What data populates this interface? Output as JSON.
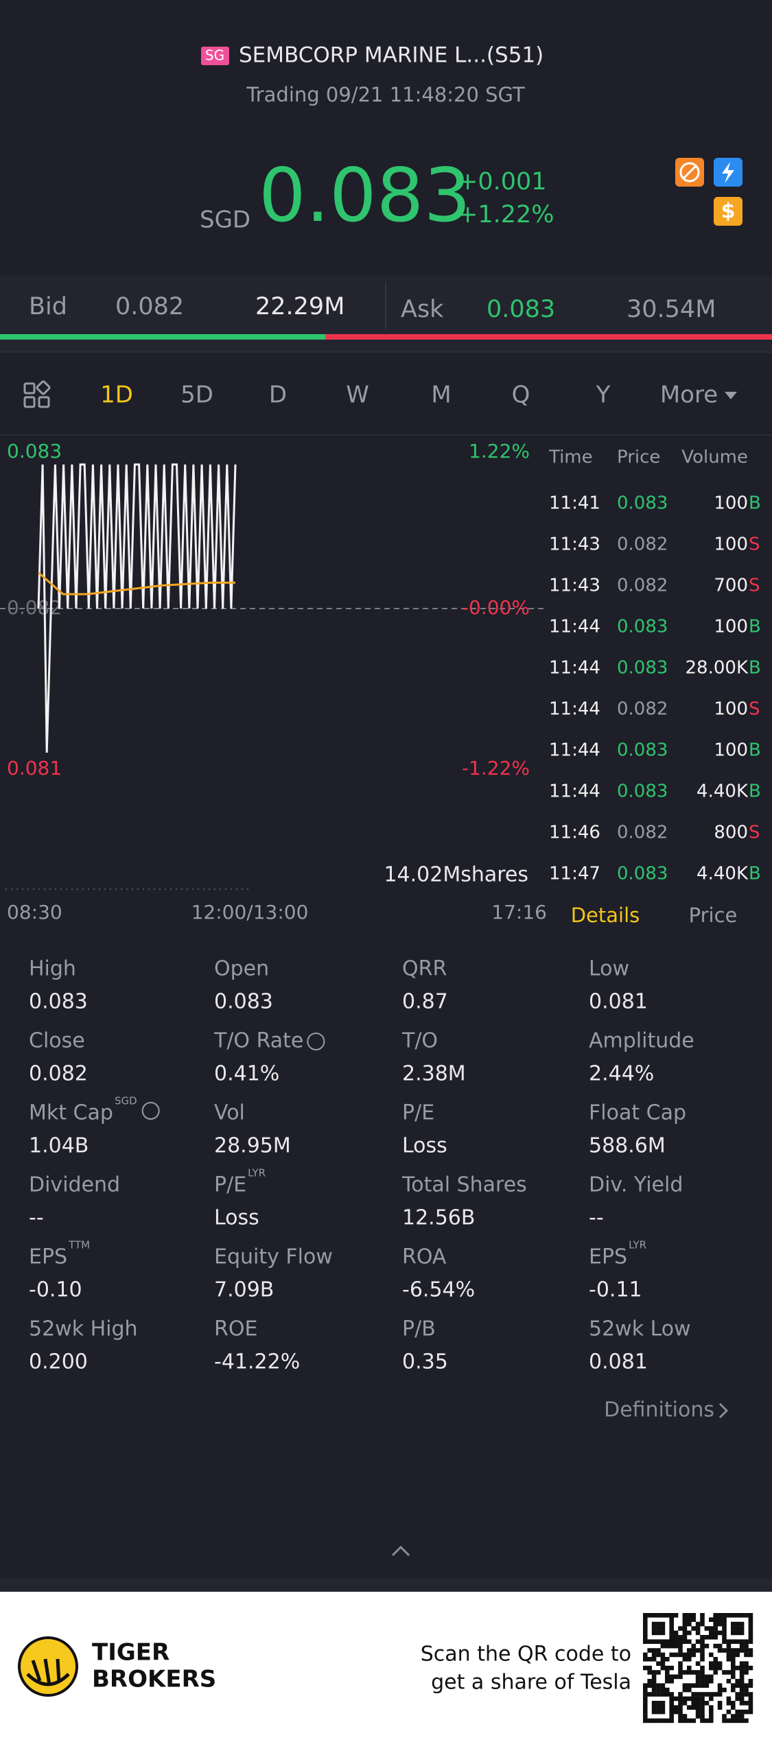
{
  "header": {
    "exchange_badge": "SG",
    "name": "SEMBCORP MARINE L...(S51)",
    "status": "Trading 09/21 11:48:20 SGT"
  },
  "quote": {
    "currency": "SGD",
    "price": "0.083",
    "change": "+0.001",
    "change_pct": "+1.22%"
  },
  "order_book": {
    "bid_label": "Bid",
    "bid_price": "0.082",
    "bid_size": "22.29M",
    "ask_label": "Ask",
    "ask_price": "0.083",
    "ask_size": "30.54M"
  },
  "tabs": [
    "1D",
    "5D",
    "D",
    "W",
    "M",
    "Q",
    "Y",
    "More"
  ],
  "active_tab": 0,
  "chart": {
    "y_top_label": "0.083",
    "base_label": "0.082",
    "y_bottom_label": "0.081",
    "pct_top": "1.22%",
    "pct_base": "-0.00%",
    "pct_bottom": "-1.22%",
    "volume_label": "14.02Mshares",
    "x_labels": [
      "08:30",
      "12:00/13:00",
      "17:16"
    ],
    "price": [
      0.082,
      0.083,
      0.081,
      0.082,
      0.083,
      0.082,
      0.083,
      0.082,
      0.083,
      0.082,
      0.083,
      0.083,
      0.082,
      0.083,
      0.082,
      0.083,
      0.082,
      0.083,
      0.082,
      0.083,
      0.082,
      0.083,
      0.082,
      0.083,
      0.083,
      0.082,
      0.083,
      0.082,
      0.083,
      0.082,
      0.083,
      0.082,
      0.083,
      0.083,
      0.082,
      0.083,
      0.082,
      0.083,
      0.082,
      0.083,
      0.082,
      0.083,
      0.082,
      0.083,
      0.082,
      0.083,
      0.082,
      0.083
    ],
    "avg": [
      0.08225,
      0.0821,
      0.0821,
      0.08212,
      0.08214,
      0.08216,
      0.08217,
      0.08218,
      0.08218
    ]
  },
  "trades": {
    "headers": [
      "Time",
      "Price",
      "Volume"
    ],
    "rows": [
      [
        "11:41",
        "0.083",
        "100",
        "B"
      ],
      [
        "11:43",
        "0.082",
        "100",
        "S"
      ],
      [
        "11:43",
        "0.082",
        "700",
        "S"
      ],
      [
        "11:44",
        "0.083",
        "100",
        "B"
      ],
      [
        "11:44",
        "0.083",
        "28.00K",
        "B"
      ],
      [
        "11:44",
        "0.082",
        "100",
        "S"
      ],
      [
        "11:44",
        "0.083",
        "100",
        "B"
      ],
      [
        "11:44",
        "0.083",
        "4.40K",
        "B"
      ],
      [
        "11:46",
        "0.082",
        "800",
        "S"
      ],
      [
        "11:47",
        "0.083",
        "4.40K",
        "B"
      ]
    ]
  },
  "detail_tabs": [
    "Details",
    "Price"
  ],
  "stats": [
    {
      "label": "High",
      "value": "0.083"
    },
    {
      "label": "Open",
      "value": "0.083"
    },
    {
      "label": "QRR",
      "value": "0.87"
    },
    {
      "label": "Low",
      "value": "0.081"
    },
    {
      "label": "Close",
      "value": "0.082"
    },
    {
      "label": "T/O Rate",
      "value": "0.41%",
      "info": true
    },
    {
      "label": "T/O",
      "value": "2.38M"
    },
    {
      "label": "Amplitude",
      "value": "2.44%"
    },
    {
      "label": "Mkt Cap",
      "sup": "SGD",
      "value": "1.04B",
      "info": true
    },
    {
      "label": "Vol",
      "value": "28.95M"
    },
    {
      "label": "P/E",
      "value": "Loss"
    },
    {
      "label": "Float Cap",
      "value": "588.6M"
    },
    {
      "label": "Dividend",
      "value": "--"
    },
    {
      "label": "P/E",
      "sup": "LYR",
      "value": "Loss"
    },
    {
      "label": "Total Shares",
      "value": "12.56B"
    },
    {
      "label": "Div. Yield",
      "value": "--"
    },
    {
      "label": "EPS",
      "sup": "TTM",
      "value": "-0.10"
    },
    {
      "label": "Equity Flow",
      "value": "7.09B"
    },
    {
      "label": "ROA",
      "value": "-6.54%"
    },
    {
      "label": "EPS",
      "sup": "LYR",
      "value": "-0.11"
    },
    {
      "label": "52wk High",
      "value": "0.200"
    },
    {
      "label": "ROE",
      "value": "-41.22%"
    },
    {
      "label": "P/B",
      "value": "0.35"
    },
    {
      "label": "52wk Low",
      "value": "0.081"
    }
  ],
  "definitions": "Definitions",
  "footer": {
    "brand_line1": "TIGER",
    "brand_line2": "BROKERS",
    "qr_text_line1": "Scan the QR code to",
    "qr_text_line2": "get a share of Tesla"
  }
}
